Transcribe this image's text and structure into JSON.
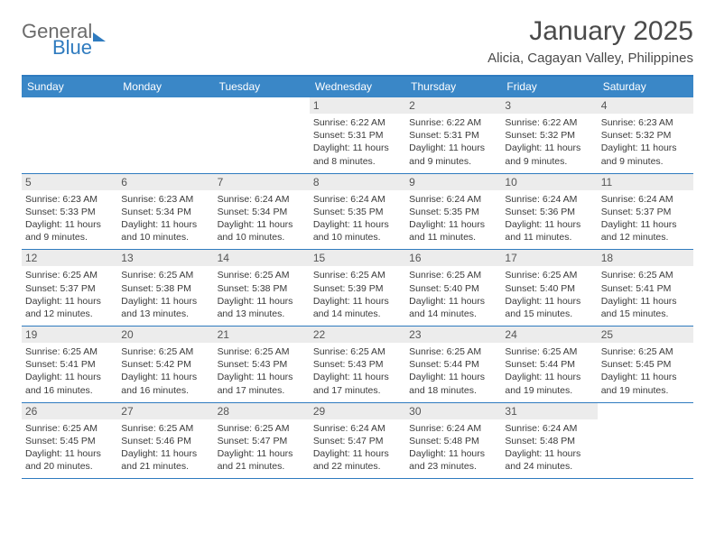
{
  "logo": {
    "word1": "General",
    "word2": "Blue"
  },
  "title": "January 2025",
  "subtitle": "Alicia, Cagayan Valley, Philippines",
  "header_bg": "#3a87c7",
  "accent": "#2f7bbf",
  "daynum_bg": "#ececec",
  "weekdays": [
    "Sunday",
    "Monday",
    "Tuesday",
    "Wednesday",
    "Thursday",
    "Friday",
    "Saturday"
  ],
  "weeks": [
    [
      null,
      null,
      null,
      {
        "n": "1",
        "sunrise": "6:22 AM",
        "sunset": "5:31 PM",
        "day_h": 11,
        "day_m": 8
      },
      {
        "n": "2",
        "sunrise": "6:22 AM",
        "sunset": "5:31 PM",
        "day_h": 11,
        "day_m": 9
      },
      {
        "n": "3",
        "sunrise": "6:22 AM",
        "sunset": "5:32 PM",
        "day_h": 11,
        "day_m": 9
      },
      {
        "n": "4",
        "sunrise": "6:23 AM",
        "sunset": "5:32 PM",
        "day_h": 11,
        "day_m": 9
      }
    ],
    [
      {
        "n": "5",
        "sunrise": "6:23 AM",
        "sunset": "5:33 PM",
        "day_h": 11,
        "day_m": 9
      },
      {
        "n": "6",
        "sunrise": "6:23 AM",
        "sunset": "5:34 PM",
        "day_h": 11,
        "day_m": 10
      },
      {
        "n": "7",
        "sunrise": "6:24 AM",
        "sunset": "5:34 PM",
        "day_h": 11,
        "day_m": 10
      },
      {
        "n": "8",
        "sunrise": "6:24 AM",
        "sunset": "5:35 PM",
        "day_h": 11,
        "day_m": 10
      },
      {
        "n": "9",
        "sunrise": "6:24 AM",
        "sunset": "5:35 PM",
        "day_h": 11,
        "day_m": 11
      },
      {
        "n": "10",
        "sunrise": "6:24 AM",
        "sunset": "5:36 PM",
        "day_h": 11,
        "day_m": 11
      },
      {
        "n": "11",
        "sunrise": "6:24 AM",
        "sunset": "5:37 PM",
        "day_h": 11,
        "day_m": 12
      }
    ],
    [
      {
        "n": "12",
        "sunrise": "6:25 AM",
        "sunset": "5:37 PM",
        "day_h": 11,
        "day_m": 12
      },
      {
        "n": "13",
        "sunrise": "6:25 AM",
        "sunset": "5:38 PM",
        "day_h": 11,
        "day_m": 13
      },
      {
        "n": "14",
        "sunrise": "6:25 AM",
        "sunset": "5:38 PM",
        "day_h": 11,
        "day_m": 13
      },
      {
        "n": "15",
        "sunrise": "6:25 AM",
        "sunset": "5:39 PM",
        "day_h": 11,
        "day_m": 14
      },
      {
        "n": "16",
        "sunrise": "6:25 AM",
        "sunset": "5:40 PM",
        "day_h": 11,
        "day_m": 14
      },
      {
        "n": "17",
        "sunrise": "6:25 AM",
        "sunset": "5:40 PM",
        "day_h": 11,
        "day_m": 15
      },
      {
        "n": "18",
        "sunrise": "6:25 AM",
        "sunset": "5:41 PM",
        "day_h": 11,
        "day_m": 15
      }
    ],
    [
      {
        "n": "19",
        "sunrise": "6:25 AM",
        "sunset": "5:41 PM",
        "day_h": 11,
        "day_m": 16
      },
      {
        "n": "20",
        "sunrise": "6:25 AM",
        "sunset": "5:42 PM",
        "day_h": 11,
        "day_m": 16
      },
      {
        "n": "21",
        "sunrise": "6:25 AM",
        "sunset": "5:43 PM",
        "day_h": 11,
        "day_m": 17
      },
      {
        "n": "22",
        "sunrise": "6:25 AM",
        "sunset": "5:43 PM",
        "day_h": 11,
        "day_m": 17
      },
      {
        "n": "23",
        "sunrise": "6:25 AM",
        "sunset": "5:44 PM",
        "day_h": 11,
        "day_m": 18
      },
      {
        "n": "24",
        "sunrise": "6:25 AM",
        "sunset": "5:44 PM",
        "day_h": 11,
        "day_m": 19
      },
      {
        "n": "25",
        "sunrise": "6:25 AM",
        "sunset": "5:45 PM",
        "day_h": 11,
        "day_m": 19
      }
    ],
    [
      {
        "n": "26",
        "sunrise": "6:25 AM",
        "sunset": "5:45 PM",
        "day_h": 11,
        "day_m": 20
      },
      {
        "n": "27",
        "sunrise": "6:25 AM",
        "sunset": "5:46 PM",
        "day_h": 11,
        "day_m": 21
      },
      {
        "n": "28",
        "sunrise": "6:25 AM",
        "sunset": "5:47 PM",
        "day_h": 11,
        "day_m": 21
      },
      {
        "n": "29",
        "sunrise": "6:24 AM",
        "sunset": "5:47 PM",
        "day_h": 11,
        "day_m": 22
      },
      {
        "n": "30",
        "sunrise": "6:24 AM",
        "sunset": "5:48 PM",
        "day_h": 11,
        "day_m": 23
      },
      {
        "n": "31",
        "sunrise": "6:24 AM",
        "sunset": "5:48 PM",
        "day_h": 11,
        "day_m": 24
      },
      null
    ]
  ],
  "labels": {
    "sunrise": "Sunrise:",
    "sunset": "Sunset:",
    "daylight": "Daylight:",
    "hours": "hours",
    "and": "and",
    "minutes": "minutes."
  }
}
